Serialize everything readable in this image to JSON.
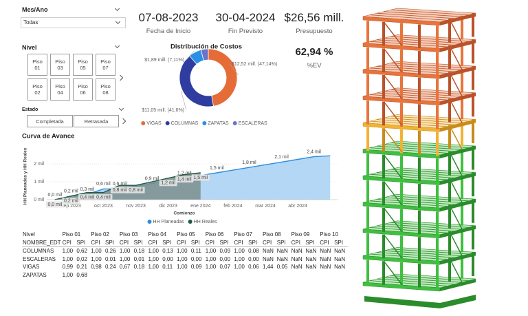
{
  "filters": {
    "month": {
      "title": "Mes/Ano",
      "value": "Todas"
    },
    "level": {
      "title": "Nivel",
      "options": [
        "Piso 01",
        "Piso 03",
        "Piso 05",
        "Piso 07",
        "Piso 02",
        "Piso 04",
        "Piso 06",
        "Piso 08"
      ]
    },
    "status": {
      "title": "Estado",
      "options": [
        "Completada",
        "Retrasada"
      ]
    }
  },
  "kpis": [
    {
      "value": "07-08-2023",
      "label": "Fecha de Inicio"
    },
    {
      "value": "30-04-2024",
      "label": "Fin Previsto"
    },
    {
      "value": "$26,56 mill.",
      "label": "Presupuesto"
    },
    {
      "value": "62,94 %",
      "label": "%EV"
    }
  ],
  "chart_data": [
    {
      "type": "donut",
      "title": "Distribución de Costos",
      "categories": [
        "VIGAS",
        "COLUMNAS",
        "ZAPATAS",
        "ESCALERAS"
      ],
      "values": [
        12.52,
        11.05,
        1.89,
        1.1
      ],
      "value_labels": [
        "$12,52 mill. (47,14%)",
        "$11,05 mill. (41,6%)",
        "$1,89 mill. (7,11%)",
        null
      ],
      "colors": [
        "#e66c37",
        "#2f3da0",
        "#2b8fe6",
        "#6b72c9"
      ]
    },
    {
      "type": "area",
      "title": "Curva de Avance",
      "x_label": "Comienzo",
      "y_label": "HH Planeadas y HH Reales",
      "categories": [
        null,
        "sep 2023",
        null,
        "oct 2023",
        null,
        "nov 2023",
        null,
        "dic 2023",
        null,
        "ene 2024",
        null,
        "feb 2024",
        null,
        "mar 2024",
        null,
        "abr 2024",
        null,
        null
      ],
      "series": [
        {
          "name": "HH Planeadas",
          "color": "#2b8de0",
          "fill": "#a7d0f3",
          "values": [
            0.0,
            0.2,
            0.3,
            0.6,
            0.6,
            0.75,
            0.9,
            1.05,
            1.2,
            1.35,
            1.5,
            1.65,
            1.8,
            1.95,
            2.1,
            2.25,
            2.4,
            2.45
          ],
          "value_labels": [
            "0,0 mil",
            "0,2 mil",
            "0,3 mil",
            "0,6 mil",
            "0,6 mil",
            null,
            "0,9 mil",
            null,
            "1,2 mil",
            null,
            "1,5 mil",
            null,
            "1,8 mil",
            null,
            "2,1 mil",
            null,
            "2,4 mil",
            null
          ]
        },
        {
          "name": "HH Reales",
          "color": "#1f5a45",
          "fill": "#7d8f8c",
          "values": [
            0.0,
            0.2,
            0.4,
            0.4,
            0.8,
            0.8,
            1.0,
            1.2,
            1.4,
            1.5,
            null,
            null,
            null,
            null,
            null,
            null,
            null,
            null
          ],
          "value_labels": [
            "0,0 mil",
            "0,2 mil",
            "0,4 mil",
            "0,4 mil",
            "0,8 mil",
            "0,8 mil",
            null,
            "1,2 mil",
            "1,4 mil",
            "1,5 mil",
            null,
            null,
            null,
            null,
            null,
            null,
            null,
            null
          ]
        }
      ],
      "ylim": [
        0,
        2.6
      ],
      "yticks": [
        {
          "value": 0,
          "label": "0 mil"
        },
        {
          "value": 1,
          "label": "1 mil"
        },
        {
          "value": 2,
          "label": "2 mil"
        }
      ],
      "grid": true
    }
  ],
  "table": {
    "header_1": [
      "Nivel",
      "Piso 01",
      "Piso 02",
      "Piso 03",
      "Piso 04",
      "Piso 05",
      "Piso 06",
      "Piso 07",
      "Piso 08",
      "Piso 09",
      "Piso 10"
    ],
    "header_2": [
      "NOMBRE_EDT",
      "CPI",
      "SPI",
      "CPI",
      "SPI",
      "CPI",
      "SPI",
      "CPI",
      "SPI",
      "CPI",
      "SPI",
      "CPI",
      "SPI",
      "CPI",
      "SPI",
      "CPI",
      "SPI",
      "CPI",
      "SPI",
      "CPI",
      "SPI"
    ],
    "rows": [
      [
        "COLUMNAS",
        "1,00",
        "0,62",
        "1,00",
        "0,26",
        "1,00",
        "0,18",
        "1,00",
        "0,13",
        "1,00",
        "0,11",
        "1,00",
        "0,09",
        "1,00",
        "0,08",
        "NaN",
        "NaN",
        "NaN",
        "NaN",
        "NaN",
        "NaN"
      ],
      [
        "ESCALERAS",
        "1,00",
        "0,02",
        "1,00",
        "0,01",
        "1,00",
        "0,01",
        "1,00",
        "0,00",
        "1,00",
        "0,00",
        "1,00",
        "0,00",
        "1,00",
        "0,00",
        "NaN",
        "NaN",
        "NaN",
        "NaN",
        "NaN",
        "NaN"
      ],
      [
        "VIGAS",
        "0,99",
        "0,21",
        "0,98",
        "0,24",
        "0,67",
        "0,18",
        "1,00",
        "0,11",
        "1,00",
        "0,09",
        "1,00",
        "0,07",
        "1,00",
        "0,06",
        "1,44",
        "0,05",
        "NaN",
        "NaN",
        "NaN",
        "NaN"
      ],
      [
        "ZAPATAS",
        "1,00",
        "0,68"
      ]
    ]
  }
}
